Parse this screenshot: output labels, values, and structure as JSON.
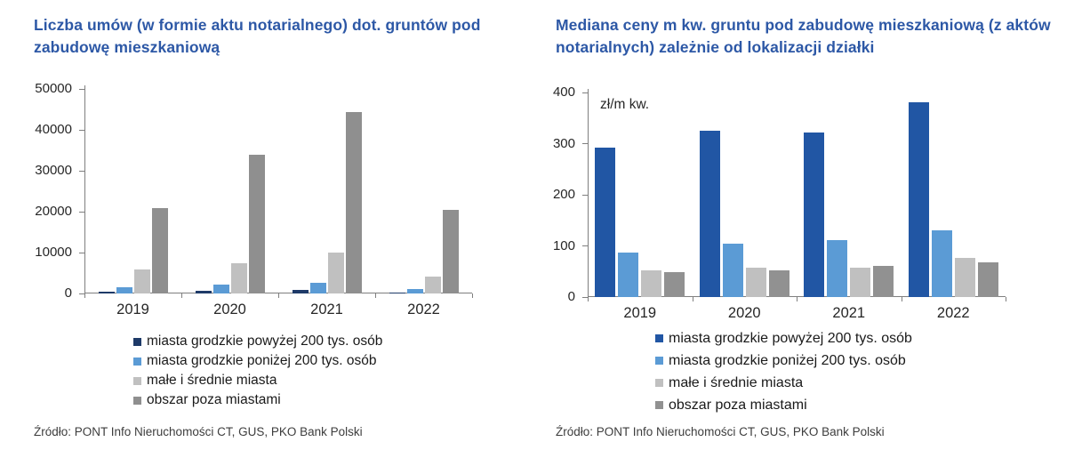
{
  "chart_data": [
    {
      "type": "bar",
      "title": "Liczba umów (w formie aktu notarialnego) dot. gruntów pod zabudowę mieszkaniową",
      "categories": [
        "2019",
        "2020",
        "2021",
        "2022"
      ],
      "series": [
        {
          "name": "miasta grodzkie powyżej 200 tys. osób",
          "color": "#1E3A68",
          "values": [
            500,
            700,
            800,
            300
          ]
        },
        {
          "name": "miasta grodzkie poniżej 200 tys. osób",
          "color": "#5B9BD5",
          "values": [
            1500,
            2200,
            2700,
            1100
          ]
        },
        {
          "name": "małe i średnie miasta",
          "color": "#C0C0C0",
          "values": [
            5900,
            7500,
            9900,
            4100
          ]
        },
        {
          "name": "obszar poza miastami",
          "color": "#8F8F8F",
          "values": [
            20900,
            34000,
            44400,
            20500
          ]
        }
      ],
      "ylim": [
        0,
        50000
      ],
      "yticks": [
        0,
        10000,
        20000,
        30000,
        40000,
        50000
      ],
      "xlabel": "",
      "ylabel": "",
      "unit_label": "",
      "grid": false,
      "legend_position": "bottom",
      "source": "Źródło: PONT Info Nieruchomości CT, GUS, PKO Bank Polski"
    },
    {
      "type": "bar",
      "title": "Mediana ceny m kw. gruntu pod zabudowę mieszkaniową (z aktów notarialnych) zależnie od lokalizacji działki",
      "categories": [
        "2019",
        "2020",
        "2021",
        "2022"
      ],
      "series": [
        {
          "name": "miasta grodzkie powyżej 200 tys. osób",
          "color": "#2156A4",
          "values": [
            293,
            326,
            322,
            381
          ]
        },
        {
          "name": "miasta grodzkie poniżej 200 tys. osób",
          "color": "#5B9BD5",
          "values": [
            87,
            105,
            112,
            130
          ]
        },
        {
          "name": "małe i średnie miasta",
          "color": "#C0C0C0",
          "values": [
            52,
            58,
            58,
            77
          ]
        },
        {
          "name": "obszar poza miastami",
          "color": "#919191",
          "values": [
            48,
            53,
            61,
            68
          ]
        }
      ],
      "ylim": [
        0,
        400
      ],
      "yticks": [
        0,
        100,
        200,
        300,
        400
      ],
      "xlabel": "",
      "ylabel": "",
      "unit_label": "zł/m kw.",
      "grid": false,
      "legend_position": "bottom",
      "source": "Źródło: PONT Info Nieruchomości CT, GUS, PKO Bank Polski"
    }
  ]
}
